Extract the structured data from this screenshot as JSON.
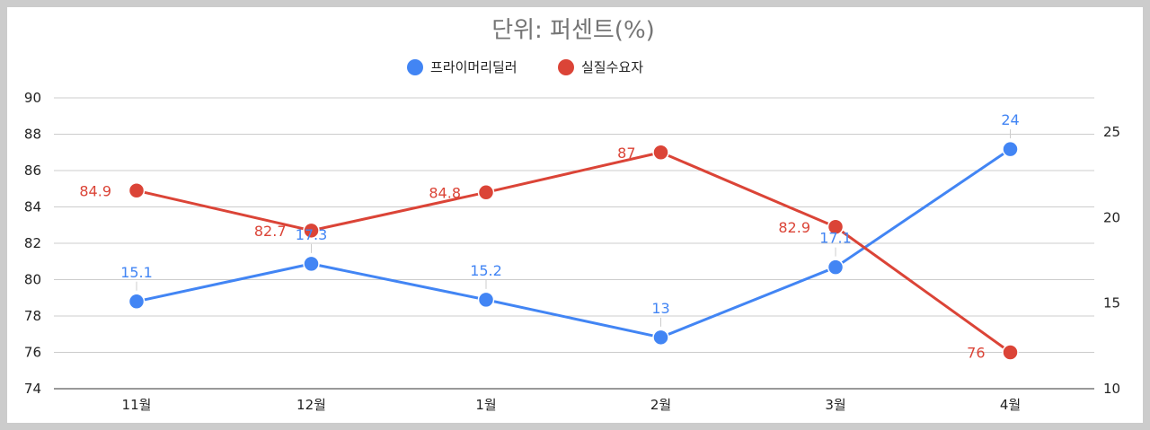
{
  "chart_data": {
    "type": "line",
    "title": "단위: 퍼센트(%)",
    "categories": [
      "11월",
      "12월",
      "1월",
      "2월",
      "3월",
      "4월"
    ],
    "series": [
      {
        "name": "프라이머리딜러",
        "axis": "right",
        "color": "#4285f4",
        "values": [
          15.1,
          17.3,
          15.2,
          13,
          17.1,
          24
        ]
      },
      {
        "name": "실질수요자",
        "axis": "left",
        "color": "#db4437",
        "values": [
          84.9,
          82.7,
          84.8,
          87,
          82.9,
          76
        ]
      }
    ],
    "y_left": {
      "min": 74,
      "max": 90,
      "ticks": [
        74,
        76,
        78,
        80,
        82,
        84,
        86,
        88,
        90
      ]
    },
    "y_right": {
      "min": 10,
      "max": 27,
      "ticks": [
        10,
        15,
        20,
        25
      ]
    },
    "legend": "top",
    "grid": true
  }
}
